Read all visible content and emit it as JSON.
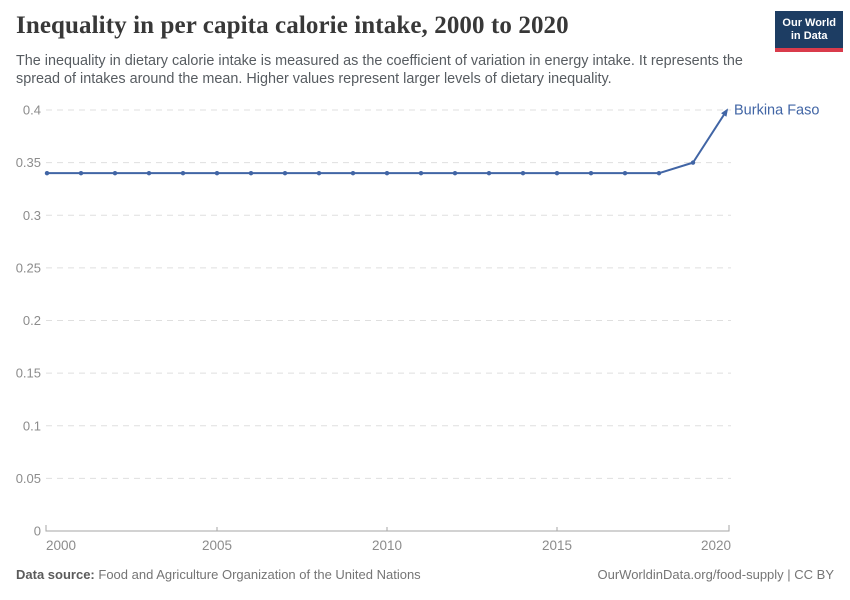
{
  "header": {
    "title": "Inequality in per capita calorie intake, 2000 to 2020",
    "subtitle": "The inequality in dietary calorie intake is measured as the coefficient of variation in energy intake. It represents the spread of intakes around the mean. Higher values represent larger levels of dietary inequality.",
    "logo": {
      "line1": "Our World",
      "line2": "in Data",
      "bg_color": "#1d3d63",
      "accent_color": "#d93b4b"
    }
  },
  "chart_data": {
    "type": "line",
    "title": "Inequality in per capita calorie intake, 2000 to 2020",
    "xlabel": "",
    "ylabel": "",
    "xlim": [
      2000,
      2020
    ],
    "ylim": [
      0,
      0.4
    ],
    "xticks": [
      2000,
      2005,
      2010,
      2015,
      2020
    ],
    "yticks": [
      0,
      0.05,
      0.1,
      0.15,
      0.2,
      0.25,
      0.3,
      0.35,
      0.4
    ],
    "grid": true,
    "gridline_color": "#dfdfdf",
    "axis_color": "#a5a5a5",
    "tick_label_color": "#8c8c8c",
    "legend_position": "inline-end-label",
    "series": [
      {
        "name": "Burkina Faso",
        "color": "#4165a5",
        "x": [
          2000,
          2001,
          2002,
          2003,
          2004,
          2005,
          2006,
          2007,
          2008,
          2009,
          2010,
          2011,
          2012,
          2013,
          2014,
          2015,
          2016,
          2017,
          2018,
          2019,
          2020
        ],
        "values": [
          0.34,
          0.34,
          0.34,
          0.34,
          0.34,
          0.34,
          0.34,
          0.34,
          0.34,
          0.34,
          0.34,
          0.34,
          0.34,
          0.34,
          0.34,
          0.34,
          0.34,
          0.34,
          0.34,
          0.35,
          0.4
        ]
      }
    ]
  },
  "footer": {
    "datasource_label": "Data source:",
    "datasource_value": "Food and Agriculture Organization of the United Nations",
    "credit": "OurWorldinData.org/food-supply | CC BY"
  }
}
